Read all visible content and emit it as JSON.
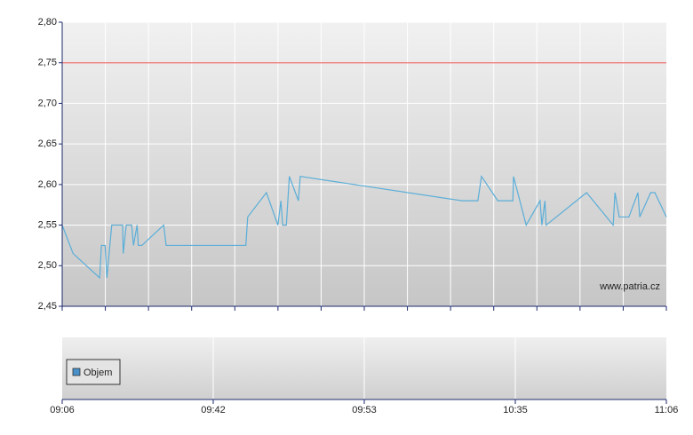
{
  "chart_data": [
    {
      "type": "line",
      "x": [
        0,
        1.8,
        6.2,
        6.5,
        7.1,
        7.4,
        8.2,
        10,
        10.1,
        10.6,
        11.5,
        11.8,
        12.4,
        12.6,
        13.2,
        16.8,
        17.2,
        30.4,
        30.7,
        33.8,
        35.7,
        36.2,
        36.5,
        37.1,
        37.6,
        39.1,
        39.4,
        66.2,
        68.8,
        69.4,
        72.1,
        74.6,
        74.7,
        76.8,
        79.1,
        79.4,
        79.9,
        80.1,
        86.8,
        91.2,
        91.5,
        92.2,
        93.8,
        95.3,
        95.6,
        97.4,
        98.1,
        100
      ],
      "values": [
        2.55,
        2.515,
        2.485,
        2.525,
        2.525,
        2.485,
        2.55,
        2.55,
        2.515,
        2.55,
        2.55,
        2.525,
        2.55,
        2.525,
        2.525,
        2.55,
        2.525,
        2.525,
        2.56,
        2.59,
        2.55,
        2.58,
        2.55,
        2.55,
        2.61,
        2.58,
        2.61,
        2.58,
        2.58,
        2.61,
        2.58,
        2.58,
        2.61,
        2.55,
        2.58,
        2.55,
        2.58,
        2.55,
        2.59,
        2.55,
        2.59,
        2.56,
        2.56,
        2.59,
        2.56,
        2.59,
        2.59,
        2.56
      ],
      "color": "#5aaed8",
      "xlim": [
        0,
        100
      ],
      "ylim": [
        2.45,
        2.8
      ],
      "yticks": [
        {
          "value": 2.45,
          "label": "2,45"
        },
        {
          "value": 2.5,
          "label": "2,50"
        },
        {
          "value": 2.55,
          "label": "2,55"
        },
        {
          "value": 2.6,
          "label": "2,60"
        },
        {
          "value": 2.65,
          "label": "2,65"
        },
        {
          "value": 2.7,
          "label": "2,70"
        },
        {
          "value": 2.75,
          "label": "2,75"
        },
        {
          "value": 2.8,
          "label": "2,80"
        }
      ],
      "reference_line": {
        "value": 2.75,
        "color": "#f07070"
      },
      "annotation": "www.patria.cz",
      "grid": true
    },
    {
      "type": "bar",
      "xlim": [
        0,
        100
      ],
      "xticks": [
        {
          "value": 0,
          "label": "09:06"
        },
        {
          "value": 25,
          "label": "09:42"
        },
        {
          "value": 50,
          "label": "09:53"
        },
        {
          "value": 75,
          "label": "10:35"
        },
        {
          "value": 100,
          "label": "11:06"
        }
      ],
      "series": [
        {
          "name": "Objem",
          "color": "#4a90c8",
          "values": []
        }
      ],
      "legend": "left",
      "grid": true
    }
  ]
}
